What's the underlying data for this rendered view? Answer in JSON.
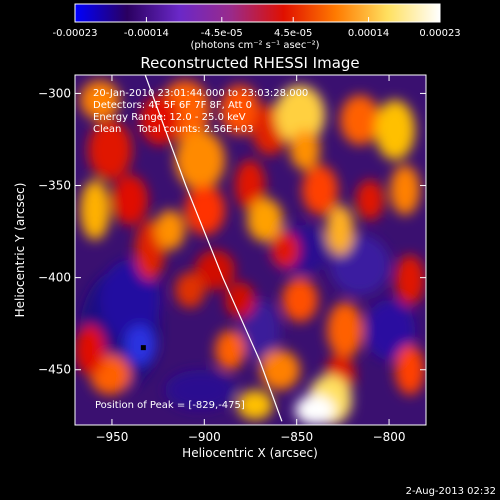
{
  "chart_data": {
    "type": "heatmap",
    "title": "Reconstructed RHESSI Image",
    "xlabel": "Heliocentric X (arcsec)",
    "ylabel": "Heliocentric Y (arcsec)",
    "xlim": [
      -970,
      -780
    ],
    "ylim": [
      -480,
      -290
    ],
    "x_ticks": [
      -950,
      -900,
      -850,
      -800
    ],
    "x_tick_labels": [
      "−950",
      "−900",
      "−850",
      "−800"
    ],
    "y_ticks": [
      -300,
      -350,
      -400,
      -450
    ],
    "y_tick_labels": [
      "−300",
      "−350",
      "−400",
      "−450"
    ],
    "colorbar": {
      "ticks": [
        -0.00023,
        -0.00014,
        -4.5e-05,
        4.5e-05,
        0.00014,
        0.00023
      ],
      "tick_labels": [
        "-0.00023",
        "-0.00014",
        "-4.5e-05",
        "4.5e-05",
        "0.00014",
        "0.00023"
      ],
      "units": "(photons cm⁻² s⁻¹ asec⁻²)",
      "colors": [
        "#0000ff",
        "#2a0060",
        "#6a28c8",
        "#9a2a8a",
        "#e01000",
        "#ff7a00",
        "#ffe060",
        "#ffffff"
      ]
    },
    "annotations": [
      "20-Jan-2010 23:01:44.000 to 23:03:28.000",
      "Detectors: 4F 5F 6F 7F 8F, Att 0",
      "Energy Range: 12.0 - 25.0 keV",
      "Clean     Total counts: 2.56E+03"
    ],
    "peak_label": "Position of Peak = [-829,-475]",
    "peak": [
      -829,
      -475
    ],
    "limb_curve": {
      "x": [
        -932,
        -910,
        -890,
        -870,
        -858
      ],
      "y": [
        -290,
        -350,
        -400,
        -445,
        -478
      ]
    },
    "marker": {
      "x": -933,
      "y": -438
    }
  },
  "footer": {
    "date": "2-Aug-2013 02:32"
  }
}
